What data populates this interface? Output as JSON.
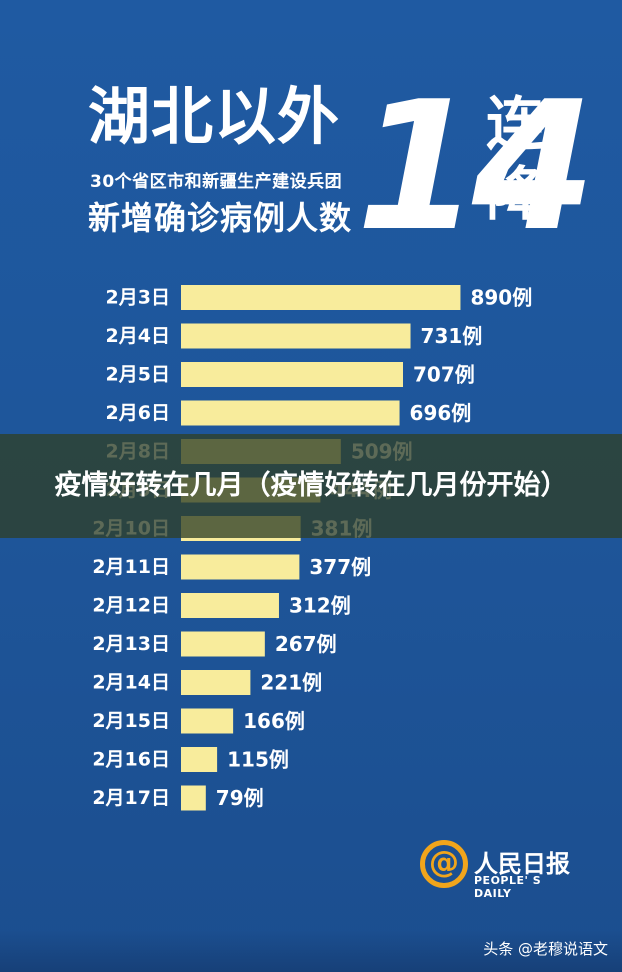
{
  "header": {
    "title_main": "湖北以外",
    "subtitle_line1": "30个省区市和新疆生产建设兵团",
    "subtitle_line2": "新增确诊病例人数",
    "big_number": "14",
    "char_lian": "连",
    "char_jiang": "降"
  },
  "chart_data": {
    "type": "bar",
    "orientation": "horizontal",
    "categories": [
      "2月3日",
      "2月4日",
      "2月5日",
      "2月6日",
      "2月8日",
      "2月9日",
      "2月10日",
      "2月11日",
      "2月12日",
      "2月13日",
      "2月14日",
      "2月15日",
      "2月16日",
      "2月17日"
    ],
    "values": [
      890,
      731,
      707,
      696,
      509,
      444,
      381,
      377,
      312,
      267,
      221,
      166,
      115,
      79
    ],
    "labels": [
      "890例",
      "731例",
      "707例",
      "696例",
      "509例",
      "444例",
      "381例",
      "377例",
      "312例",
      "267例",
      "221例",
      "166例",
      "115例",
      "79例"
    ],
    "title": "",
    "xlabel": "",
    "ylabel": "",
    "bar_color": "#f8ec9c",
    "grid": false
  },
  "banner": {
    "text": "疫情好转在几月（疫情好转在几月份开始）"
  },
  "logo": {
    "symbol": "@",
    "name": "人民日报",
    "english": "PEOPLE' S DAILY"
  },
  "footer": {
    "text": "头条 @老穆说语文"
  },
  "colors": {
    "background": "#1e5599",
    "bar": "#f8ec9c",
    "text": "#ffffff",
    "logo_accent": "#f1a51b"
  }
}
